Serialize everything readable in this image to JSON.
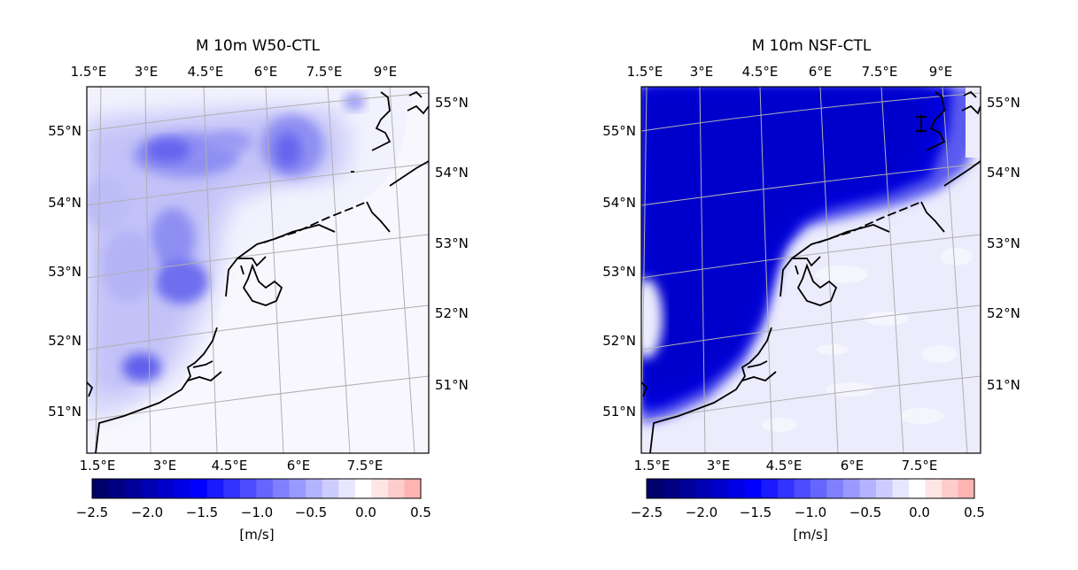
{
  "panels": [
    {
      "title": "M 10m W50-CTL",
      "top_lon_labels": [
        "1.5°E",
        "3°E",
        "4.5°E",
        "6°E",
        "7.5°E",
        "9°E"
      ],
      "bottom_lon_labels": [
        "1.5°E",
        "3°E",
        "4.5°E",
        "6°E",
        "7.5°E"
      ],
      "left_lat_labels": [
        "55°N",
        "54°N",
        "53°N",
        "52°N",
        "51°N"
      ],
      "right_lat_labels": [
        "55°N",
        "54°N",
        "53°N",
        "52°N",
        "51°N"
      ],
      "field": "W50 wind deficit: patchy bands over the North Sea, strongest near -1.5 m/s"
    },
    {
      "title": "M 10m NSF-CTL",
      "top_lon_labels": [
        "1.5°E",
        "3°E",
        "4.5°E",
        "6°E",
        "7.5°E",
        "9°E"
      ],
      "bottom_lon_labels": [
        "1.5°E",
        "3°E",
        "4.5°E",
        "6°E",
        "7.5°E"
      ],
      "left_lat_labels": [
        "55°N",
        "54°N",
        "53°N",
        "52°N",
        "51°N"
      ],
      "right_lat_labels": [
        "55°N",
        "54°N",
        "53°N",
        "52°N",
        "51°N"
      ],
      "field": "NSF wind deficit: uniform strong reduction over the whole sea, about -2.0 m/s"
    }
  ],
  "colorbar": {
    "ticks": [
      "−2.5",
      "−2.0",
      "−1.5",
      "−1.0",
      "−0.5",
      "0.0",
      "0.5"
    ],
    "unit": "[m/s]",
    "range": [
      -2.5,
      0.5
    ],
    "colors": [
      "#00006b",
      "#000080",
      "#000099",
      "#0000b3",
      "#0000cc",
      "#0000e6",
      "#0000ff",
      "#1a1aff",
      "#3333ff",
      "#4d4dff",
      "#6666ff",
      "#8080ff",
      "#9999ff",
      "#b3b3ff",
      "#ccccff",
      "#e6e6ff",
      "#ffffff",
      "#ffe6e6",
      "#ffcccc",
      "#ffb3b3"
    ]
  },
  "colors": {
    "sea_light": "#eeeefe",
    "land": "#f6f6fd",
    "coast": "#000000",
    "grid": "#b0b0b0",
    "deep_blue": "#0000d8",
    "mid_blue": "#6d6df5",
    "light_blue": "#b8b8f8"
  }
}
